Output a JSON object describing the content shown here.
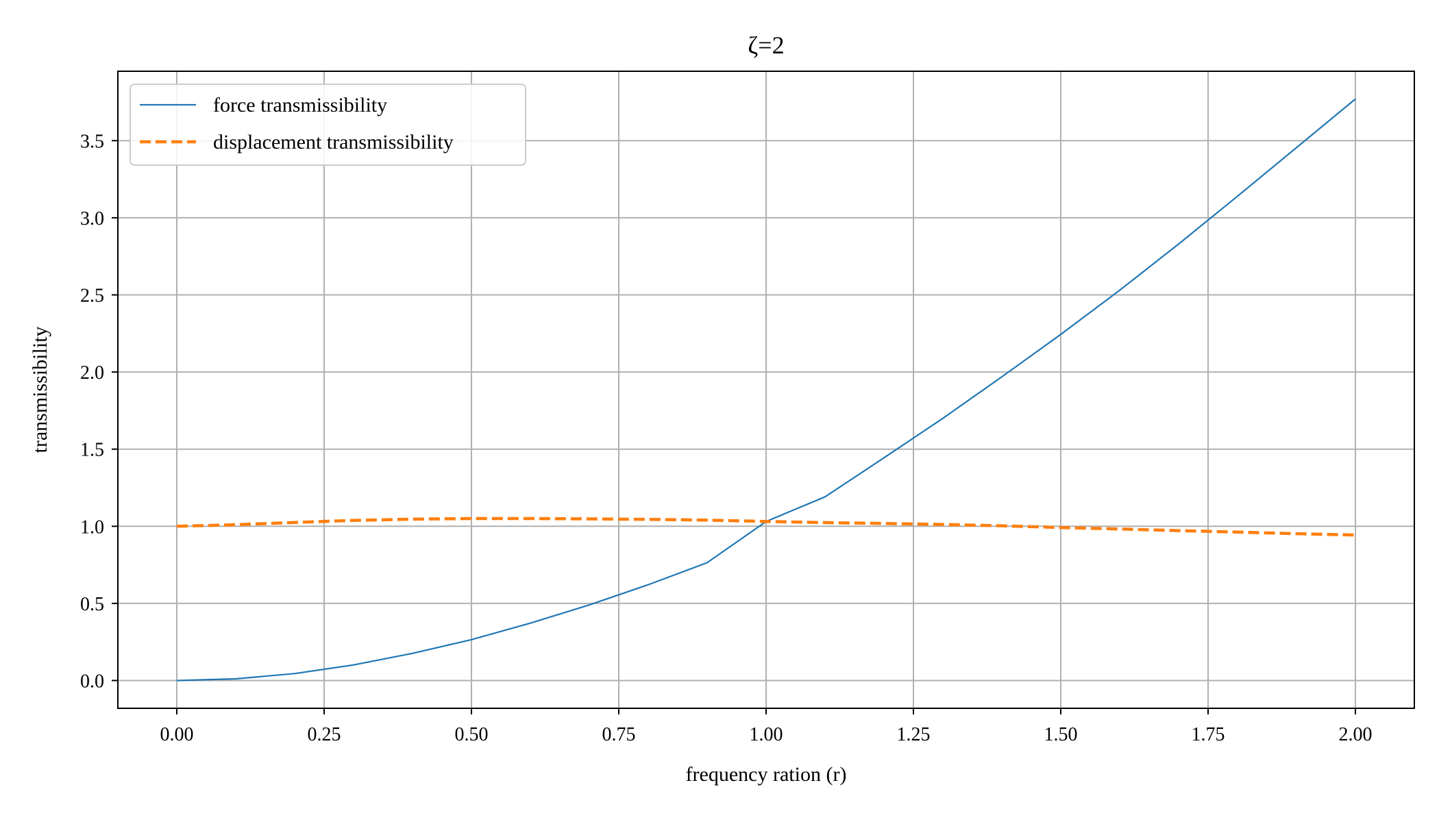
{
  "chart_data": {
    "type": "line",
    "title": "ζ=2",
    "xlabel": "frequency ration (r)",
    "ylabel": "transmissibility",
    "xlim": [
      -0.1,
      2.1
    ],
    "ylim": [
      -0.18,
      3.95
    ],
    "xticks": [
      "0.00",
      "0.25",
      "0.50",
      "0.75",
      "1.00",
      "1.25",
      "1.50",
      "1.75",
      "2.00"
    ],
    "yticks": [
      "0.0",
      "0.5",
      "1.0",
      "1.5",
      "2.0",
      "2.5",
      "3.0",
      "3.5"
    ],
    "grid": true,
    "legend_position": "upper-left",
    "x": [
      0.0,
      0.1,
      0.2,
      0.3,
      0.4,
      0.5,
      0.6,
      0.7,
      0.8,
      0.9,
      1.0,
      1.1,
      1.2,
      1.3,
      1.4,
      1.5,
      1.6,
      1.7,
      1.8,
      1.9,
      2.0
    ],
    "series": [
      {
        "name": "force transmissibility",
        "style": "solid",
        "color": "#1f77b4",
        "values": [
          0.0,
          0.011,
          0.045,
          0.101,
          0.176,
          0.265,
          0.372,
          0.49,
          0.621,
          0.764,
          1.031,
          1.191,
          1.444,
          1.7,
          1.969,
          2.244,
          2.53,
          2.83,
          3.14,
          3.455,
          3.77
        ]
      },
      {
        "name": "displacement transmissibility",
        "style": "dashed",
        "color": "#ff7f0e",
        "values": [
          1.0,
          1.01,
          1.025,
          1.038,
          1.046,
          1.05,
          1.05,
          1.048,
          1.045,
          1.04,
          1.031,
          1.024,
          1.018,
          1.012,
          1.003,
          0.992,
          0.982,
          0.972,
          0.962,
          0.952,
          0.943
        ]
      }
    ]
  }
}
